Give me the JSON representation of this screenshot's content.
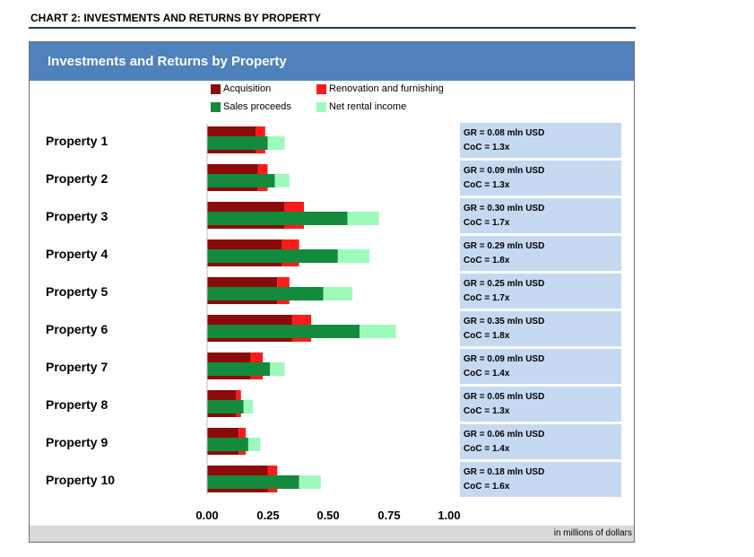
{
  "page_title": "CHART 2: INVESTMENTS AND RETURNS BY PROPERTY",
  "footer_note": "in millions of dollars",
  "colors": {
    "acquisition": "#8b0a0a",
    "renovation": "#ff1a1a",
    "sales": "#138a3c",
    "rental": "#9efabb"
  },
  "chart_data": {
    "type": "bar",
    "orientation": "horizontal",
    "title": "Investments and Returns by Property",
    "xlabel": "in millions of dollars",
    "xlim": [
      0,
      1.0
    ],
    "xticks": [
      "0.00",
      "0.25",
      "0.50",
      "0.75",
      "1.00"
    ],
    "legend": [
      "Acquisition",
      "Renovation and furnishing",
      "Sales proceeds",
      "Net rental income"
    ],
    "categories": [
      "Property 1",
      "Property 2",
      "Property 3",
      "Property 4",
      "Property 5",
      "Property 6",
      "Property 7",
      "Property 8",
      "Property 9",
      "Property 10"
    ],
    "series": [
      {
        "name": "Acquisition",
        "values": [
          0.2,
          0.21,
          0.32,
          0.31,
          0.29,
          0.35,
          0.18,
          0.12,
          0.13,
          0.25
        ]
      },
      {
        "name": "Renovation and furnishing",
        "values": [
          0.04,
          0.04,
          0.08,
          0.07,
          0.05,
          0.08,
          0.05,
          0.02,
          0.03,
          0.04
        ]
      },
      {
        "name": "Sales proceeds",
        "values": [
          0.25,
          0.28,
          0.58,
          0.54,
          0.48,
          0.63,
          0.26,
          0.15,
          0.17,
          0.38
        ]
      },
      {
        "name": "Net rental income",
        "values": [
          0.07,
          0.06,
          0.13,
          0.13,
          0.12,
          0.15,
          0.06,
          0.04,
          0.05,
          0.09
        ]
      }
    ],
    "annotations": [
      {
        "gr": "GR = 0.08 mln USD",
        "coc": "CoC = 1.3x"
      },
      {
        "gr": "GR = 0.09 mln USD",
        "coc": "CoC = 1.3x"
      },
      {
        "gr": "GR = 0.30 mln USD",
        "coc": "CoC = 1.7x"
      },
      {
        "gr": "GR = 0.29 mln USD",
        "coc": "CoC = 1.8x"
      },
      {
        "gr": "GR = 0.25 mln USD",
        "coc": "CoC = 1.7x"
      },
      {
        "gr": "GR = 0.35 mln USD",
        "coc": "CoC = 1.8x"
      },
      {
        "gr": "GR = 0.09 mln USD",
        "coc": "CoC = 1.4x"
      },
      {
        "gr": "GR = 0.05 mln USD",
        "coc": "CoC = 1.3x"
      },
      {
        "gr": "GR = 0.06 mln USD",
        "coc": "CoC = 1.4x"
      },
      {
        "gr": "GR = 0.18 mln USD",
        "coc": "CoC = 1.6x"
      }
    ]
  }
}
